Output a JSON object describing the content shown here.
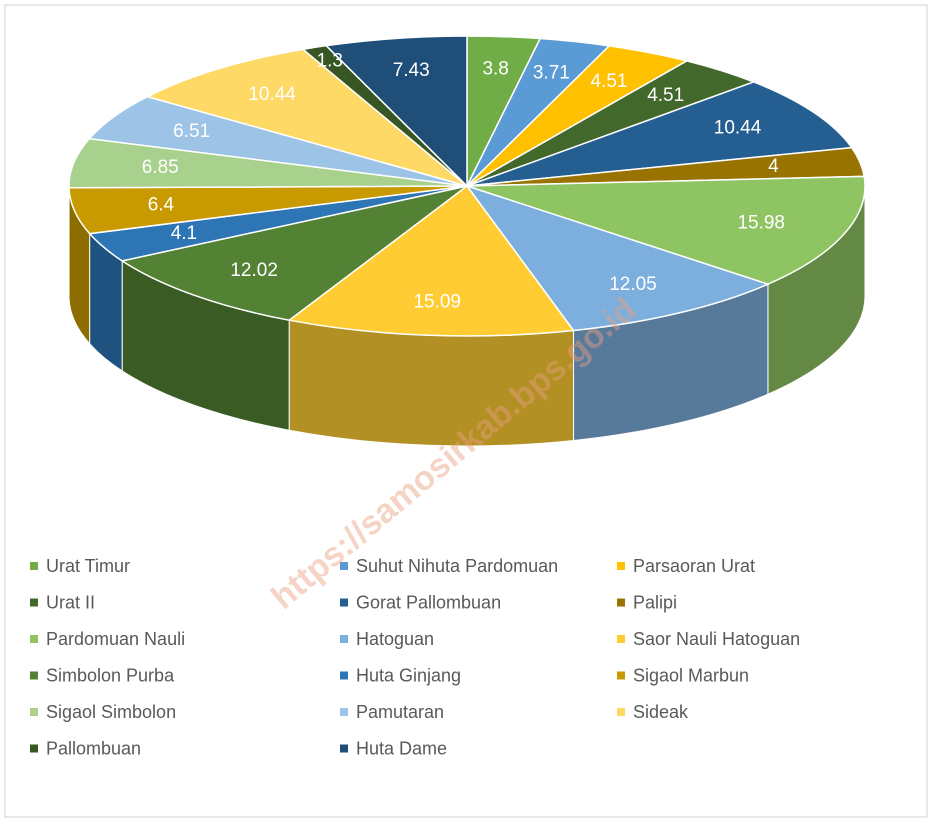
{
  "chart_data": {
    "type": "pie",
    "categories": [
      "Urat Timur",
      "Suhut Nihuta Pardomuan",
      "Parsaoran Urat",
      "Urat II",
      "Gorat Pallombuan",
      "Palipi",
      "Pardomuan Nauli",
      "Hatoguan",
      "Saor Nauli Hatoguan",
      "Simbolon Purba",
      "Huta Ginjang",
      "Sigaol Marbun",
      "Sigaol Simbolon",
      "Pamutaran",
      "Sideak",
      "Pallombuan",
      "Huta Dame"
    ],
    "values": [
      3.8,
      3.71,
      4.51,
      4.51,
      10.44,
      4,
      15.98,
      12.05,
      15.09,
      12.02,
      4.1,
      6.4,
      6.85,
      6.51,
      10.44,
      1.3,
      7.43
    ],
    "colors": [
      "#70ad47",
      "#5b9bd5",
      "#ffc000",
      "#43682b",
      "#255e91",
      "#997300",
      "#8fc463",
      "#7cafdd",
      "#ffcd33",
      "#548235",
      "#2e75b6",
      "#c99a00",
      "#a9d18e",
      "#9dc3e6",
      "#ffd966",
      "#375623",
      "#1f4e79"
    ],
    "legend": "bottom",
    "watermark": "https://samosirkab.bps.go.id"
  }
}
